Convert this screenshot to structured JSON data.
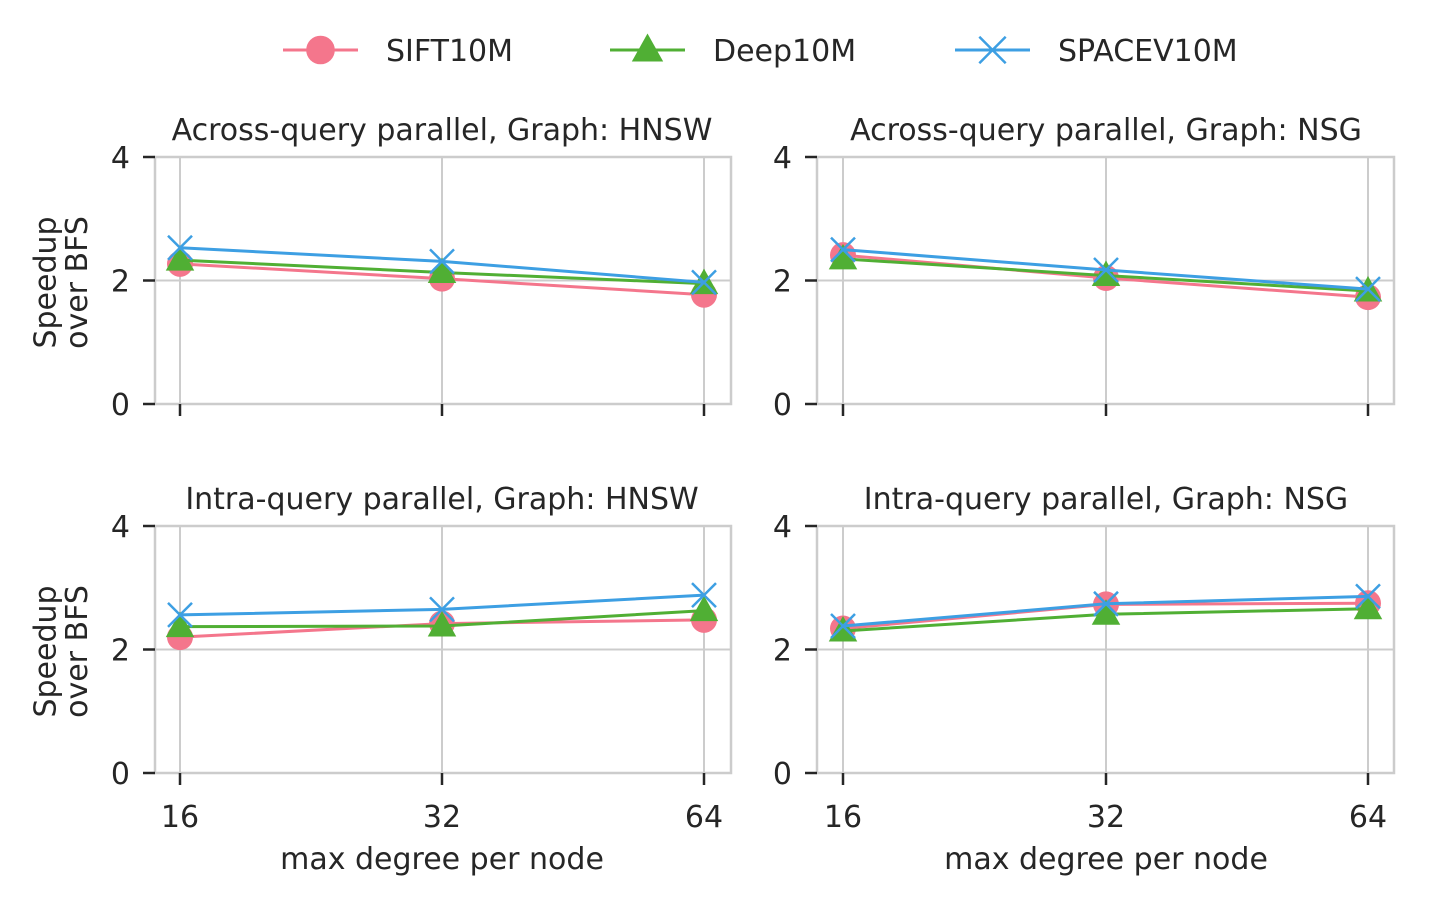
{
  "legend": [
    {
      "name": "SIFT10M",
      "color": "#f4768c",
      "marker": "circle"
    },
    {
      "name": "Deep10M",
      "color": "#50af34",
      "marker": "triangle"
    },
    {
      "name": "SPACEV10M",
      "color": "#3d9fe3",
      "marker": "x"
    }
  ],
  "chart_data": [
    {
      "type": "line",
      "title": "Across-query parallel, Graph: HNSW",
      "ylabel": "Speedup\nover BFS",
      "xlabel": "",
      "x": [
        16,
        32,
        64
      ],
      "xticklabels": [
        "",
        "",
        ""
      ],
      "yticks": [
        "0",
        "2",
        "4"
      ],
      "ylim": [
        0,
        4
      ],
      "grid": true,
      "series": [
        {
          "name": "SIFT10M",
          "values": [
            2.27,
            2.03,
            1.77
          ]
        },
        {
          "name": "Deep10M",
          "values": [
            2.33,
            2.13,
            1.95
          ]
        },
        {
          "name": "SPACEV10M",
          "values": [
            2.53,
            2.31,
            1.97
          ]
        }
      ]
    },
    {
      "type": "line",
      "title": "Across-query parallel, Graph: NSG",
      "ylabel": "",
      "xlabel": "",
      "x": [
        16,
        32,
        64
      ],
      "xticklabels": [
        "",
        "",
        ""
      ],
      "yticks": [
        "0",
        "2",
        "4"
      ],
      "ylim": [
        0,
        4
      ],
      "grid": true,
      "series": [
        {
          "name": "SIFT10M",
          "values": [
            2.41,
            2.04,
            1.73
          ]
        },
        {
          "name": "Deep10M",
          "values": [
            2.35,
            2.08,
            1.83
          ]
        },
        {
          "name": "SPACEV10M",
          "values": [
            2.5,
            2.17,
            1.86
          ]
        }
      ]
    },
    {
      "type": "line",
      "title": "Intra-query parallel, Graph: HNSW",
      "ylabel": "Speedup\nover BFS",
      "xlabel": "max degree per node",
      "x": [
        16,
        32,
        64
      ],
      "xticklabels": [
        "16",
        "32",
        "64"
      ],
      "yticks": [
        "0",
        "2",
        "4"
      ],
      "ylim": [
        0,
        4
      ],
      "grid": true,
      "series": [
        {
          "name": "SIFT10M",
          "values": [
            2.2,
            2.42,
            2.48
          ]
        },
        {
          "name": "Deep10M",
          "values": [
            2.37,
            2.38,
            2.63
          ]
        },
        {
          "name": "SPACEV10M",
          "values": [
            2.56,
            2.65,
            2.88
          ]
        }
      ]
    },
    {
      "type": "line",
      "title": "Intra-query parallel, Graph: NSG",
      "ylabel": "",
      "xlabel": "max degree per node",
      "x": [
        16,
        32,
        64
      ],
      "xticklabels": [
        "16",
        "32",
        "64"
      ],
      "yticks": [
        "0",
        "2",
        "4"
      ],
      "ylim": [
        0,
        4
      ],
      "grid": true,
      "series": [
        {
          "name": "SIFT10M",
          "values": [
            2.34,
            2.73,
            2.75
          ]
        },
        {
          "name": "Deep10M",
          "values": [
            2.3,
            2.57,
            2.66
          ]
        },
        {
          "name": "SPACEV10M",
          "values": [
            2.38,
            2.74,
            2.86
          ]
        }
      ]
    }
  ]
}
